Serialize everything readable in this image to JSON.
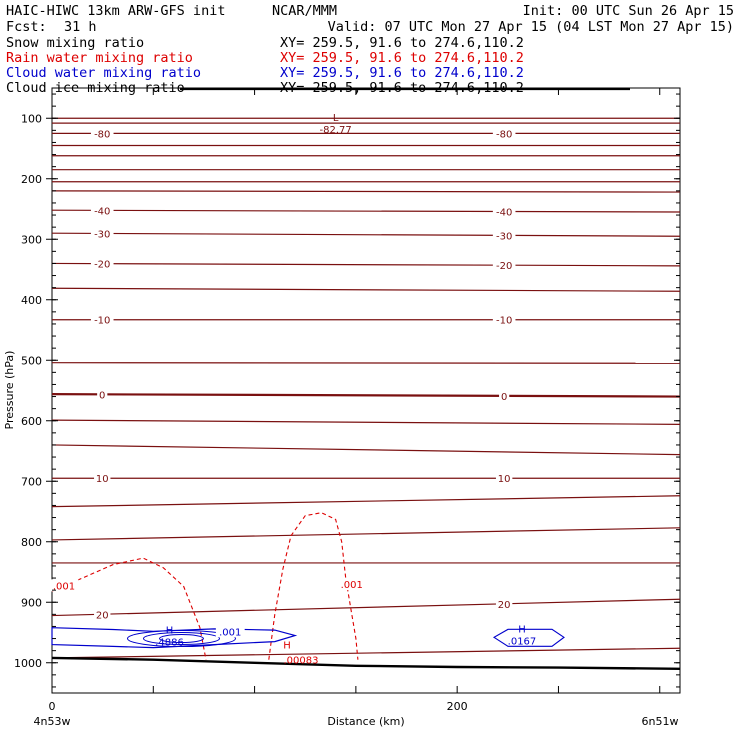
{
  "header": {
    "model": "HAIC-HIWC 13km ARW-GFS init",
    "org": "NCAR/MMM",
    "init": "Init: 00 UTC Sun 26 Apr 15",
    "fcst_label": "Fcst:",
    "fcst_value": "31 h",
    "valid": "Valid: 07 UTC Mon 27 Apr 15 (04 LST Mon 27 Apr 15)"
  },
  "fields": [
    {
      "name": "Snow mixing ratio",
      "xy": "XY= 259.5, 91.6 to 274.6,110.2",
      "color": "#000000"
    },
    {
      "name": "Rain water mixing ratio",
      "xy": "XY= 259.5, 91.6 to 274.6,110.2",
      "color": "#dd0000"
    },
    {
      "name": "Cloud water mixing ratio",
      "xy": "XY= 259.5, 91.6 to 274.6,110.2",
      "color": "#0000cc"
    },
    {
      "name": "Cloud ice mixing ratio",
      "xy": "XY= 259.5, 91.6 to 274.6,110.2",
      "color": "#000000"
    }
  ],
  "colors": {
    "temperature": "#7a1010",
    "rain": "#dd0000",
    "cloud": "#0000cc",
    "terrain": "#000000"
  },
  "chart_data": {
    "type": "contour",
    "ylabel": "Pressure (hPa)",
    "xlabel": "Distance (km)",
    "xlim": [
      0,
      310
    ],
    "ylim": [
      1050,
      50
    ],
    "yticks": [
      100,
      200,
      300,
      400,
      500,
      600,
      700,
      800,
      900,
      1000
    ],
    "xticks": [
      0,
      200
    ],
    "x_minor_step": 50,
    "y_minor_step": 20,
    "left_endpoint": "4n53w",
    "right_endpoint": "6n51w",
    "temperature_isotherms": [
      {
        "pressure_left": 100,
        "pressure_right": 100
      },
      {
        "pressure_left": 108,
        "pressure_right": 108
      },
      {
        "pressure_left": 125,
        "pressure_right": 125,
        "label": "-80"
      },
      {
        "pressure_left": 145,
        "pressure_right": 145
      },
      {
        "pressure_left": 162,
        "pressure_right": 162
      },
      {
        "pressure_left": 185,
        "pressure_right": 185
      },
      {
        "pressure_left": 205,
        "pressure_right": 205
      },
      {
        "pressure_left": 220,
        "pressure_right": 222
      },
      {
        "pressure_left": 252,
        "pressure_right": 255,
        "label": "-40"
      },
      {
        "pressure_left": 290,
        "pressure_right": 295,
        "label": "-30"
      },
      {
        "pressure_left": 340,
        "pressure_right": 344,
        "label": "-20"
      },
      {
        "pressure_left": 381,
        "pressure_right": 386
      },
      {
        "pressure_left": 433,
        "pressure_right": 433,
        "label": "-10"
      },
      {
        "pressure_left": 504,
        "pressure_right": 505
      },
      {
        "pressure_left": 556,
        "pressure_right": 560,
        "label": "0",
        "bold": true
      },
      {
        "pressure_left": 599,
        "pressure_right": 606
      },
      {
        "pressure_left": 640,
        "pressure_right": 656
      },
      {
        "pressure_left": 695,
        "pressure_right": 695,
        "label": "10"
      },
      {
        "pressure_left": 742,
        "pressure_right": 724
      },
      {
        "pressure_left": 797,
        "pressure_right": 777
      },
      {
        "pressure_left": 835,
        "pressure_right": 835
      },
      {
        "pressure_left": 922,
        "pressure_right": 895,
        "label": "20"
      },
      {
        "pressure_left": 992,
        "pressure_right": 976
      }
    ],
    "temperature_min": {
      "marker": "L",
      "value": "-82.77",
      "distance_km": 140,
      "pressure": 113
    },
    "rain_contours": [
      {
        "label": ".001",
        "points": [
          [
            0,
            882
          ],
          [
            30,
            838
          ],
          [
            45,
            827
          ],
          [
            55,
            843
          ],
          [
            65,
            874
          ],
          [
            73,
            942
          ],
          [
            76,
            995
          ]
        ]
      },
      {
        "label": ".001",
        "points": [
          [
            107,
            995
          ],
          [
            110,
            920
          ],
          [
            114,
            845
          ],
          [
            118,
            790
          ],
          [
            125,
            757
          ],
          [
            133,
            752
          ],
          [
            140,
            763
          ],
          [
            143,
            800
          ],
          [
            145,
            860
          ],
          [
            148,
            920
          ],
          [
            150,
            960
          ],
          [
            151,
            995
          ]
        ]
      }
    ],
    "rain_max": {
      "marker": "H",
      "value": ".00083",
      "distance_km": 116,
      "pressure": 990
    },
    "cloud_contours": [
      {
        "label": ".001",
        "points": [
          [
            0,
            942
          ],
          [
            30,
            945
          ],
          [
            50,
            948
          ],
          [
            80,
            944
          ],
          [
            110,
            946
          ],
          [
            120,
            955
          ],
          [
            110,
            965
          ],
          [
            80,
            970
          ],
          [
            50,
            975
          ],
          [
            30,
            973
          ],
          [
            0,
            970
          ]
        ]
      }
    ],
    "cloud_max_1": {
      "marker": "H",
      "value": ".4886",
      "distance_km": 58,
      "pressure": 960
    },
    "cloud_max_2": {
      "marker": "H",
      "value": ".0167",
      "distance_km": 232,
      "pressure": 958
    },
    "terrain_surface": [
      [
        0,
        992
      ],
      [
        50,
        995
      ],
      [
        100,
        1000
      ],
      [
        150,
        1005
      ],
      [
        200,
        1007
      ],
      [
        250,
        1008
      ],
      [
        310,
        1010
      ]
    ]
  }
}
